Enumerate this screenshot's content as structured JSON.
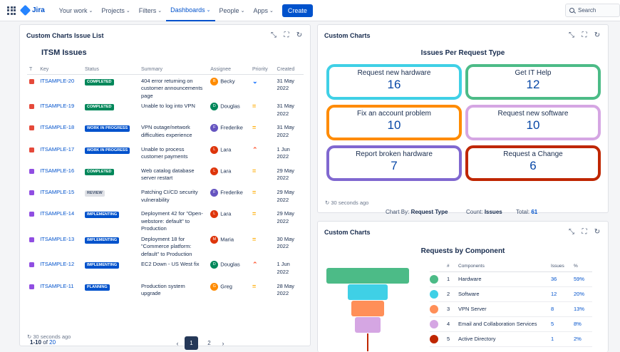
{
  "topbar": {
    "logo": "Jira",
    "nav": [
      {
        "label": "Your work",
        "chevron": true,
        "active": false
      },
      {
        "label": "Projects",
        "chevron": true,
        "active": false
      },
      {
        "label": "Filters",
        "chevron": true,
        "active": false
      },
      {
        "label": "Dashboards",
        "chevron": true,
        "active": true
      },
      {
        "label": "People",
        "chevron": true,
        "active": false
      },
      {
        "label": "Apps",
        "chevron": true,
        "active": false
      }
    ],
    "create_label": "Create",
    "search_placeholder": "Search"
  },
  "issue_panel": {
    "title": "Custom Charts Issue List",
    "list_title": "ITSM Issues",
    "columns": [
      "T",
      "Key",
      "Status",
      "Summary",
      "Assignee",
      "Priority",
      "Created"
    ],
    "rows": [
      {
        "type": "red",
        "key": "ITSAMPLE-20",
        "status": "COMPLETED",
        "status_style": "green",
        "summary": "404 error returning on customer announcements page",
        "assignee": "Becky",
        "avatar_letter": "B",
        "avatar_color": "#ff8b00",
        "priority": "low",
        "priority_glyph": "⌄",
        "priority_color": "#0065ff",
        "created": "31 May 2022"
      },
      {
        "type": "red",
        "key": "ITSAMPLE-19",
        "status": "COMPLETED",
        "status_style": "green",
        "summary": "Unable to log into VPN",
        "assignee": "Douglas",
        "avatar_letter": "D",
        "avatar_color": "#00875a",
        "priority": "medium",
        "priority_glyph": "=",
        "priority_color": "#ffab00",
        "created": "31 May 2022"
      },
      {
        "type": "red",
        "key": "ITSAMPLE-18",
        "status": "WORK IN PROGRESS",
        "status_style": "blue",
        "summary": "VPN outage/network difficulties experience",
        "assignee": "Frederike",
        "avatar_letter": "F",
        "avatar_color": "#6554c0",
        "priority": "medium",
        "priority_glyph": "=",
        "priority_color": "#ffab00",
        "created": "31 May 2022"
      },
      {
        "type": "red",
        "key": "ITSAMPLE-17",
        "status": "WORK IN PROGRESS",
        "status_style": "blue",
        "summary": "Unable to process customer payments",
        "assignee": "Lara",
        "avatar_letter": "L",
        "avatar_color": "#de350b",
        "priority": "high",
        "priority_glyph": "⌃",
        "priority_color": "#ff5630",
        "created": "1 Jun 2022"
      },
      {
        "type": "purple",
        "key": "ITSAMPLE-16",
        "status": "COMPLETED",
        "status_style": "green",
        "summary": "Web catalog database server restart",
        "assignee": "Lara",
        "avatar_letter": "L",
        "avatar_color": "#de350b",
        "priority": "medium",
        "priority_glyph": "=",
        "priority_color": "#ffab00",
        "created": "29 May 2022"
      },
      {
        "type": "purple",
        "key": "ITSAMPLE-15",
        "status": "REVIEW",
        "status_style": "gray",
        "summary": "Patching CI/CD security vulnerability",
        "assignee": "Frederike",
        "avatar_letter": "F",
        "avatar_color": "#6554c0",
        "priority": "medium",
        "priority_glyph": "=",
        "priority_color": "#ffab00",
        "created": "29 May 2022"
      },
      {
        "type": "purple",
        "key": "ITSAMPLE-14",
        "status": "IMPLEMENTING",
        "status_style": "blue",
        "summary": "Deployment 42 for \"Open-webstore: default\" to Production",
        "assignee": "Lara",
        "avatar_letter": "L",
        "avatar_color": "#de350b",
        "priority": "medium",
        "priority_glyph": "=",
        "priority_color": "#ffab00",
        "created": "29 May 2022"
      },
      {
        "type": "purple",
        "key": "ITSAMPLE-13",
        "status": "IMPLEMENTING",
        "status_style": "blue",
        "summary": "Deployment 18 for \"Commerce platform: default\" to Production",
        "assignee": "Maria",
        "avatar_letter": "M",
        "avatar_color": "#de350b",
        "priority": "medium",
        "priority_glyph": "=",
        "priority_color": "#ffab00",
        "created": "30 May 2022"
      },
      {
        "type": "purple",
        "key": "ITSAMPLE-12",
        "status": "IMPLEMENTING",
        "status_style": "blue",
        "summary": "EC2 Down - US West fix",
        "assignee": "Douglas",
        "avatar_letter": "D",
        "avatar_color": "#00875a",
        "priority": "high",
        "priority_glyph": "⌃",
        "priority_color": "#ff5630",
        "created": "1 Jun 2022"
      },
      {
        "type": "purple",
        "key": "ITSAMPLE-11",
        "status": "PLANNING",
        "status_style": "blue",
        "summary": "Production system upgrade",
        "assignee": "Greg",
        "avatar_letter": "G",
        "avatar_color": "#ff8b00",
        "priority": "medium",
        "priority_glyph": "=",
        "priority_color": "#ffab00",
        "created": "28 May 2022"
      }
    ],
    "pager_range": "1-10",
    "pager_of": "of",
    "pager_total": "20",
    "pages": [
      "1",
      "2"
    ],
    "current_page": "1",
    "prev_icon": "‹",
    "next_icon": "›",
    "refresh_note": "30 seconds ago"
  },
  "request_panel": {
    "title": "Custom Charts",
    "heading": "Issues Per Request Type",
    "tiles": [
      {
        "label": "Request new hardware",
        "value": "16",
        "color": "#3fd0e6"
      },
      {
        "label": "Get IT Help",
        "value": "12",
        "color": "#4cbb87"
      },
      {
        "label": "Fix an account problem",
        "value": "10",
        "color": "#ff8b00"
      },
      {
        "label": "Request new software",
        "value": "10",
        "color": "#d5a6e3"
      },
      {
        "label": "Report broken hardware",
        "value": "7",
        "color": "#8068d0"
      },
      {
        "label": "Request a Change",
        "value": "6",
        "color": "#bf2600"
      }
    ],
    "chart_by_label": "Chart By:",
    "chart_by_value": "Request Type",
    "count_label": "Count:",
    "count_value": "Issues",
    "total_label": "Total:",
    "total_value": "61",
    "refresh_note": "30 seconds ago"
  },
  "component_panel": {
    "title": "Custom Charts",
    "heading": "Requests by Component",
    "columns": [
      "#",
      "Components",
      "Issues",
      "%"
    ],
    "rows": [
      {
        "index": "1",
        "name": "Hardware",
        "issues": "36",
        "pct": "59%",
        "color": "#4cbb87"
      },
      {
        "index": "2",
        "name": "Software",
        "issues": "12",
        "pct": "20%",
        "color": "#3fd0e6"
      },
      {
        "index": "3",
        "name": "VPN Server",
        "issues": "8",
        "pct": "13%",
        "color": "#ff8f58"
      },
      {
        "index": "4",
        "name": "Email and Collaboration Services",
        "issues": "5",
        "pct": "8%",
        "color": "#d5a6e3"
      },
      {
        "index": "5",
        "name": "Active Directory",
        "issues": "1",
        "pct": "2%",
        "color": "#bf2600"
      }
    ]
  },
  "chart_data": {
    "type": "bar",
    "title": "Requests by Component",
    "categories": [
      "Hardware",
      "Software",
      "VPN Server",
      "Email and Collaboration Services",
      "Active Directory"
    ],
    "values": [
      36,
      12,
      8,
      5,
      1
    ]
  }
}
